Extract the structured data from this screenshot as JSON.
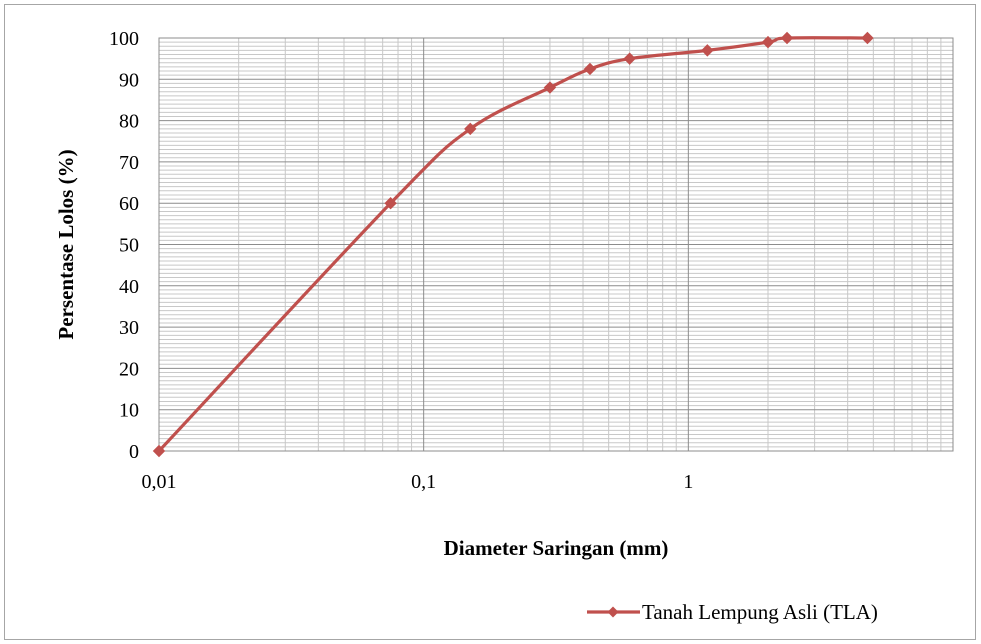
{
  "chart_data": {
    "type": "line",
    "xlabel": "Diameter Saringan (mm)",
    "ylabel": "Persentase Lolos (%)",
    "x_scale": "log",
    "xlim": [
      0.01,
      10
    ],
    "ylim": [
      0,
      100
    ],
    "x_tick_values": [
      0.01,
      0.1,
      1
    ],
    "x_tick_labels": [
      "0,01",
      "0,1",
      "1"
    ],
    "y_ticks": [
      0,
      10,
      20,
      30,
      40,
      50,
      60,
      70,
      80,
      90,
      100
    ],
    "grid": true,
    "legend_position": "bottom-right",
    "series": [
      {
        "name": "Tanah Lempung Asli (TLA)",
        "color": "#c0504d",
        "marker": "diamond",
        "x": [
          0.01,
          0.075,
          0.15,
          0.3,
          0.425,
          0.6,
          1.18,
          2.0,
          2.36,
          4.75
        ],
        "y": [
          0,
          60,
          78,
          88,
          92.5,
          95,
          97,
          99,
          100,
          100
        ]
      }
    ]
  }
}
